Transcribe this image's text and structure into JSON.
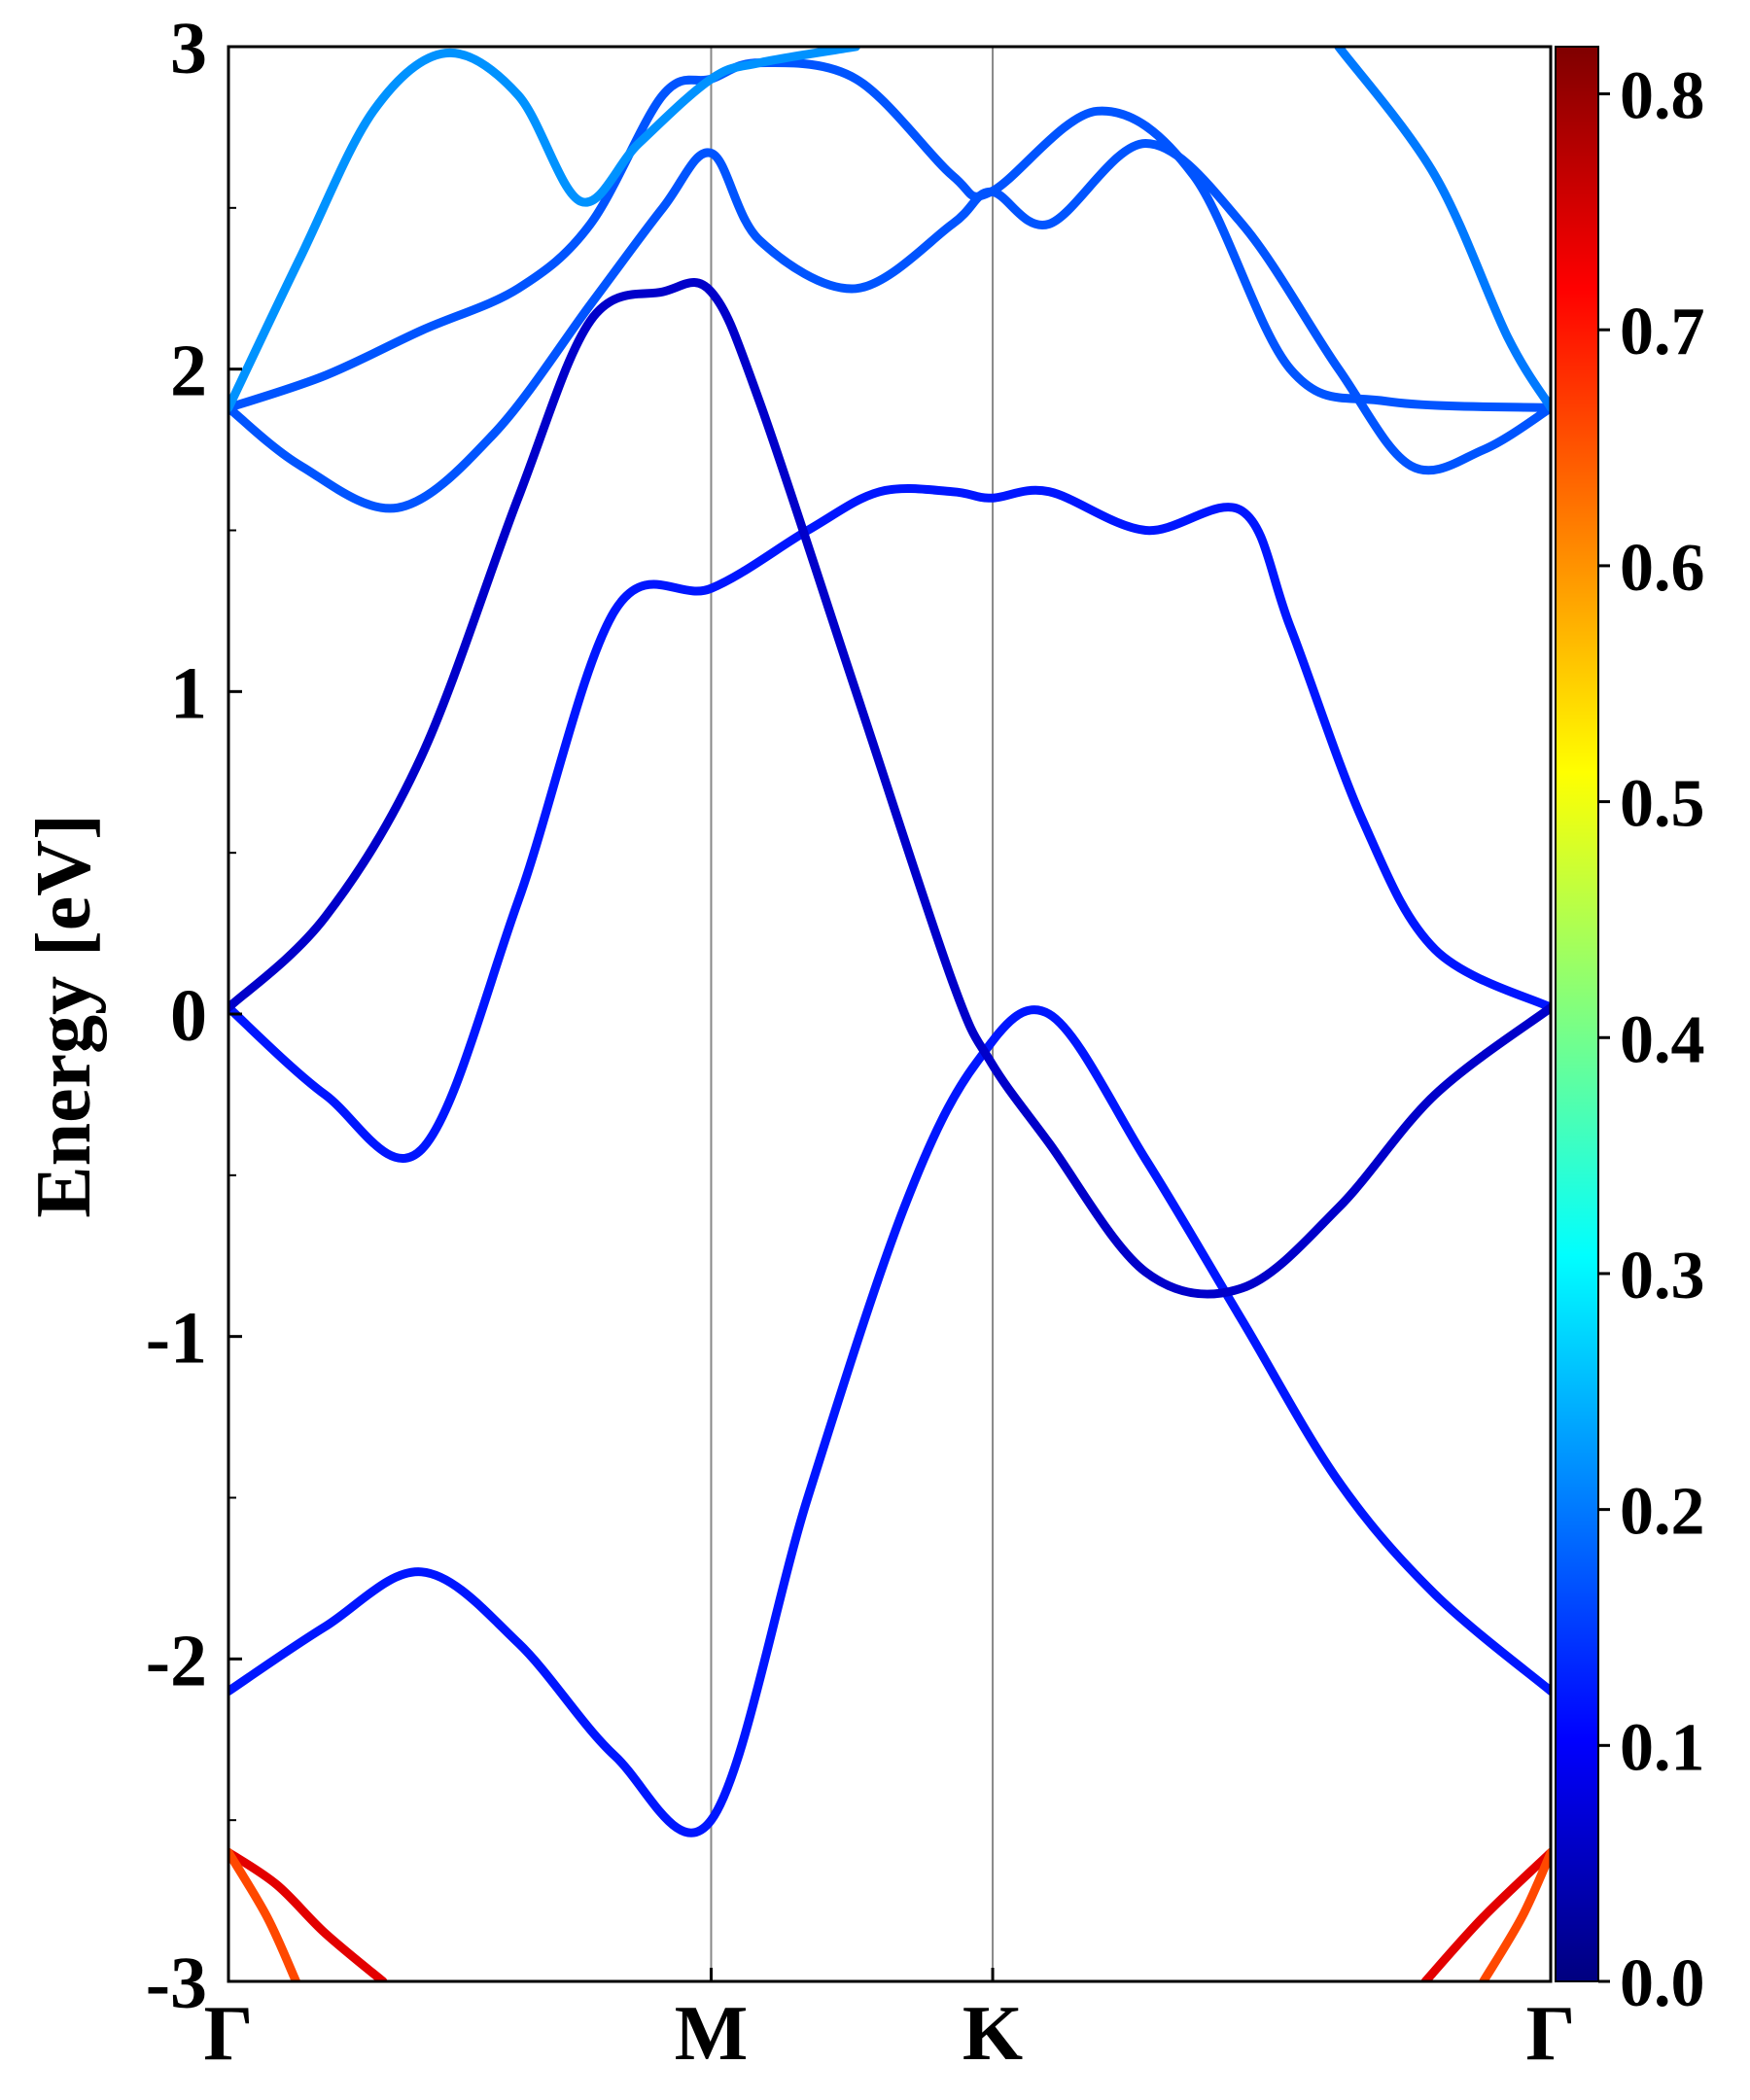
{
  "chart_data": {
    "type": "line",
    "subtype": "electronic band structure with projected weight color map",
    "ylabel": "Energy [eV]",
    "xlabel": "",
    "ylim": [
      -3,
      3
    ],
    "y_major_ticks": [
      -3,
      -2,
      -1,
      0,
      1,
      2,
      3
    ],
    "y_tick_labels": [
      "-3",
      "-2",
      "-1",
      "0",
      "1",
      "2",
      "3"
    ],
    "y_minor_ticks": [
      -2.5,
      -1.5,
      -0.5,
      0.5,
      1.5,
      2.5
    ],
    "x_tick_labels": [
      "Γ",
      "M",
      "K",
      "Γ"
    ],
    "x_tick_positions": [
      0,
      1,
      1.5833,
      2.7394
    ],
    "xlim": [
      0,
      2.7394
    ],
    "kpath_dividers": [
      1,
      1.5833
    ],
    "colorbar": {
      "colormap": "jet",
      "range": [
        0.0,
        0.82
      ],
      "ticks": [
        "0.0",
        "0.1",
        "0.2",
        "0.3",
        "0.4",
        "0.5",
        "0.6",
        "0.7",
        "0.8"
      ],
      "tick_values": [
        0.0,
        0.1,
        0.2,
        0.3,
        0.4,
        0.5,
        0.6,
        0.7,
        0.8
      ]
    },
    "bands": [
      {
        "weight": 0.12,
        "points": [
          [
            0,
            -2.1
          ],
          [
            0.2,
            -1.9
          ],
          [
            0.4,
            -1.73
          ],
          [
            0.6,
            -1.95
          ],
          [
            0.8,
            -2.3
          ],
          [
            1.0,
            -2.5
          ],
          [
            1.2,
            -1.5
          ],
          [
            1.4,
            -0.6
          ],
          [
            1.55,
            -0.15
          ],
          [
            1.7,
            0.0
          ],
          [
            1.9,
            -0.45
          ],
          [
            2.1,
            -0.95
          ],
          [
            2.3,
            -1.45
          ],
          [
            2.5,
            -1.8
          ],
          [
            2.74,
            -2.1
          ]
        ]
      },
      {
        "weight": 0.12,
        "points": [
          [
            0,
            0.02
          ],
          [
            0.2,
            -0.25
          ],
          [
            0.4,
            -0.42
          ],
          [
            0.6,
            0.35
          ],
          [
            0.8,
            1.25
          ],
          [
            1.0,
            1.32
          ],
          [
            1.2,
            1.5
          ],
          [
            1.35,
            1.62
          ],
          [
            1.5,
            1.62
          ],
          [
            1.58,
            1.6
          ],
          [
            1.7,
            1.62
          ],
          [
            1.9,
            1.5
          ],
          [
            2.1,
            1.56
          ],
          [
            2.2,
            1.2
          ],
          [
            2.35,
            0.6
          ],
          [
            2.5,
            0.2
          ],
          [
            2.74,
            0.02
          ]
        ]
      },
      {
        "weight": 0.06,
        "points": [
          [
            0,
            0.02
          ],
          [
            0.2,
            0.3
          ],
          [
            0.4,
            0.8
          ],
          [
            0.6,
            1.6
          ],
          [
            0.75,
            2.15
          ],
          [
            0.9,
            2.24
          ],
          [
            1.0,
            2.24
          ],
          [
            1.1,
            1.9
          ],
          [
            1.3,
            1.0
          ],
          [
            1.5,
            0.1
          ],
          [
            1.58,
            -0.15
          ],
          [
            1.7,
            -0.4
          ],
          [
            1.9,
            -0.8
          ],
          [
            2.1,
            -0.85
          ],
          [
            2.3,
            -0.6
          ],
          [
            2.5,
            -0.25
          ],
          [
            2.74,
            0.02
          ]
        ]
      },
      {
        "weight": 0.17,
        "points": [
          [
            0,
            1.88
          ],
          [
            0.15,
            1.7
          ],
          [
            0.35,
            1.57
          ],
          [
            0.55,
            1.8
          ],
          [
            0.75,
            2.2
          ],
          [
            0.9,
            2.5
          ],
          [
            1.0,
            2.67
          ],
          [
            1.1,
            2.4
          ],
          [
            1.3,
            2.25
          ],
          [
            1.5,
            2.45
          ],
          [
            1.58,
            2.55
          ],
          [
            1.7,
            2.45
          ],
          [
            1.9,
            2.7
          ],
          [
            2.1,
            2.45
          ],
          [
            2.3,
            2.0
          ],
          [
            2.45,
            1.7
          ],
          [
            2.6,
            1.75
          ],
          [
            2.74,
            1.88
          ]
        ]
      },
      {
        "weight": 0.17,
        "points": [
          [
            0,
            1.88
          ],
          [
            0.2,
            1.98
          ],
          [
            0.4,
            2.12
          ],
          [
            0.6,
            2.25
          ],
          [
            0.75,
            2.45
          ],
          [
            0.9,
            2.85
          ],
          [
            1.0,
            2.9
          ],
          [
            1.1,
            2.95
          ],
          [
            1.3,
            2.9
          ],
          [
            1.5,
            2.6
          ],
          [
            1.58,
            2.55
          ],
          [
            1.8,
            2.8
          ],
          [
            2.0,
            2.6
          ],
          [
            2.2,
            2.0
          ],
          [
            2.4,
            1.9
          ],
          [
            2.74,
            1.88
          ]
        ]
      },
      {
        "weight": 0.22,
        "points": [
          [
            0,
            1.88
          ],
          [
            0.15,
            2.35
          ],
          [
            0.3,
            2.8
          ],
          [
            0.45,
            2.98
          ],
          [
            0.6,
            2.85
          ],
          [
            0.73,
            2.52
          ],
          [
            0.85,
            2.7
          ],
          [
            1.0,
            2.9
          ],
          [
            1.1,
            2.95
          ],
          [
            1.3,
            3.0
          ]
        ]
      },
      {
        "weight": 0.2,
        "points": [
          [
            2.3,
            3.0
          ],
          [
            2.5,
            2.6
          ],
          [
            2.65,
            2.1
          ],
          [
            2.74,
            1.88
          ]
        ]
      },
      {
        "weight": 0.74,
        "points": [
          [
            0,
            -2.6
          ],
          [
            0.1,
            -2.7
          ],
          [
            0.2,
            -2.85
          ],
          [
            0.32,
            -3.0
          ]
        ]
      },
      {
        "weight": 0.66,
        "points": [
          [
            0,
            -2.6
          ],
          [
            0.08,
            -2.8
          ],
          [
            0.14,
            -3.0
          ]
        ]
      },
      {
        "weight": 0.74,
        "points": [
          [
            2.74,
            -2.6
          ],
          [
            2.6,
            -2.8
          ],
          [
            2.48,
            -3.0
          ]
        ]
      },
      {
        "weight": 0.66,
        "points": [
          [
            2.74,
            -2.6
          ],
          [
            2.68,
            -2.8
          ],
          [
            2.6,
            -3.0
          ]
        ]
      }
    ]
  }
}
